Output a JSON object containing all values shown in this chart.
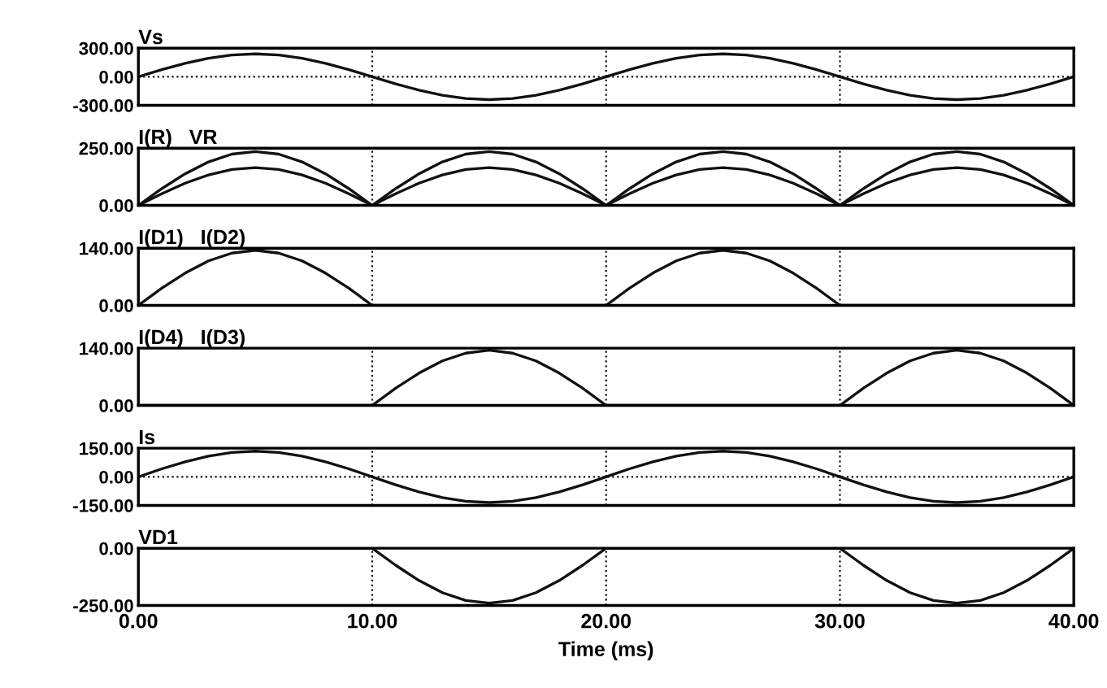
{
  "chart_data": [
    {
      "type": "line",
      "title": "Vs",
      "x": [
        0,
        1,
        2,
        3,
        4,
        5,
        6,
        7,
        8,
        9,
        10,
        11,
        12,
        13,
        14,
        15,
        16,
        17,
        18,
        19,
        20,
        21,
        22,
        23,
        24,
        25,
        26,
        27,
        28,
        29,
        30,
        31,
        32,
        33,
        34,
        35,
        36,
        37,
        38,
        39,
        40
      ],
      "xlim": [
        0,
        40
      ],
      "xticks": [
        0,
        10,
        20,
        30,
        40
      ],
      "ylim": [
        -300,
        300
      ],
      "yticks": [
        {
          "value": -300,
          "label": "-300.00"
        },
        {
          "value": 0,
          "label": "0.00"
        },
        {
          "value": 300,
          "label": "300.00"
        }
      ],
      "tick_labels": "y",
      "grid": "x",
      "legend": false,
      "series": [
        {
          "color": "#111111",
          "values": [
            0,
            74,
            141,
            194,
            228,
            240,
            228,
            194,
            141,
            74,
            0,
            -74,
            -141,
            -194,
            -228,
            -240,
            -228,
            -194,
            -141,
            -74,
            0,
            74,
            141,
            194,
            228,
            240,
            228,
            194,
            141,
            74,
            0,
            -74,
            -141,
            -194,
            -228,
            -240,
            -228,
            -194,
            -141,
            -74,
            0
          ]
        }
      ],
      "ref_lines": [
        {
          "axis": "y",
          "value": 0,
          "line_style": "dotted",
          "color": "#111111"
        }
      ]
    },
    {
      "type": "line",
      "title": "I(R)   VR",
      "x": [
        0,
        1,
        2,
        3,
        4,
        5,
        6,
        7,
        8,
        9,
        10,
        11,
        12,
        13,
        14,
        15,
        16,
        17,
        18,
        19,
        20,
        21,
        22,
        23,
        24,
        25,
        26,
        27,
        28,
        29,
        30,
        31,
        32,
        33,
        34,
        35,
        36,
        37,
        38,
        39,
        40
      ],
      "xlim": [
        0,
        40
      ],
      "xticks": [
        0,
        10,
        20,
        30,
        40
      ],
      "ylim": [
        0,
        250
      ],
      "yticks": [
        {
          "value": 0,
          "label": "0.00"
        },
        {
          "value": 250,
          "label": "250.00"
        }
      ],
      "tick_labels": "y",
      "grid": "x",
      "legend": false,
      "series": [
        {
          "color": "#111111",
          "values": [
            0,
            51,
            97,
            133,
            157,
            165,
            157,
            133,
            97,
            51,
            0,
            51,
            97,
            133,
            157,
            165,
            157,
            133,
            97,
            51,
            0,
            51,
            97,
            133,
            157,
            165,
            157,
            133,
            97,
            51,
            0,
            51,
            97,
            133,
            157,
            165,
            157,
            133,
            97,
            51,
            0
          ]
        },
        {
          "color": "#111111",
          "values": [
            0,
            73,
            138,
            190,
            224,
            235,
            224,
            190,
            138,
            73,
            0,
            73,
            138,
            190,
            224,
            235,
            224,
            190,
            138,
            73,
            0,
            73,
            138,
            190,
            224,
            235,
            224,
            190,
            138,
            73,
            0,
            73,
            138,
            190,
            224,
            235,
            224,
            190,
            138,
            73,
            0
          ]
        }
      ]
    },
    {
      "type": "line",
      "title": "I(D1)   I(D2)",
      "x": [
        0,
        1,
        2,
        3,
        4,
        5,
        6,
        7,
        8,
        9,
        10,
        11,
        12,
        13,
        14,
        15,
        16,
        17,
        18,
        19,
        20,
        21,
        22,
        23,
        24,
        25,
        26,
        27,
        28,
        29,
        30,
        31,
        32,
        33,
        34,
        35,
        36,
        37,
        38,
        39,
        40
      ],
      "xlim": [
        0,
        40
      ],
      "xticks": [
        0,
        10,
        20,
        30,
        40
      ],
      "ylim": [
        0,
        140
      ],
      "yticks": [
        {
          "value": 0,
          "label": "0.00"
        },
        {
          "value": 140,
          "label": "140.00"
        }
      ],
      "tick_labels": "y",
      "grid": "x",
      "legend": false,
      "series": [
        {
          "color": "#111111",
          "values": [
            0,
            42,
            79,
            109,
            128,
            135,
            128,
            109,
            79,
            42,
            0,
            0,
            0,
            0,
            0,
            0,
            0,
            0,
            0,
            0,
            0,
            42,
            79,
            109,
            128,
            135,
            128,
            109,
            79,
            42,
            0,
            0,
            0,
            0,
            0,
            0,
            0,
            0,
            0,
            0,
            0
          ]
        }
      ]
    },
    {
      "type": "line",
      "title": "I(D4)   I(D3)",
      "x": [
        0,
        1,
        2,
        3,
        4,
        5,
        6,
        7,
        8,
        9,
        10,
        11,
        12,
        13,
        14,
        15,
        16,
        17,
        18,
        19,
        20,
        21,
        22,
        23,
        24,
        25,
        26,
        27,
        28,
        29,
        30,
        31,
        32,
        33,
        34,
        35,
        36,
        37,
        38,
        39,
        40
      ],
      "xlim": [
        0,
        40
      ],
      "xticks": [
        0,
        10,
        20,
        30,
        40
      ],
      "ylim": [
        0,
        140
      ],
      "yticks": [
        {
          "value": 0,
          "label": "0.00"
        },
        {
          "value": 140,
          "label": "140.00"
        }
      ],
      "tick_labels": "y",
      "grid": "x",
      "legend": false,
      "series": [
        {
          "color": "#111111",
          "values": [
            0,
            0,
            0,
            0,
            0,
            0,
            0,
            0,
            0,
            0,
            0,
            42,
            79,
            109,
            128,
            135,
            128,
            109,
            79,
            42,
            0,
            0,
            0,
            0,
            0,
            0,
            0,
            0,
            0,
            0,
            0,
            42,
            79,
            109,
            128,
            135,
            128,
            109,
            79,
            42,
            0
          ]
        }
      ]
    },
    {
      "type": "line",
      "title": "Is",
      "x": [
        0,
        1,
        2,
        3,
        4,
        5,
        6,
        7,
        8,
        9,
        10,
        11,
        12,
        13,
        14,
        15,
        16,
        17,
        18,
        19,
        20,
        21,
        22,
        23,
        24,
        25,
        26,
        27,
        28,
        29,
        30,
        31,
        32,
        33,
        34,
        35,
        36,
        37,
        38,
        39,
        40
      ],
      "xlim": [
        0,
        40
      ],
      "xticks": [
        0,
        10,
        20,
        30,
        40
      ],
      "ylim": [
        -150,
        150
      ],
      "yticks": [
        {
          "value": -150,
          "label": "-150.00"
        },
        {
          "value": 0,
          "label": "0.00"
        },
        {
          "value": 150,
          "label": "150.00"
        }
      ],
      "tick_labels": "y",
      "grid": "x",
      "legend": false,
      "series": [
        {
          "color": "#111111",
          "values": [
            0,
            42,
            79,
            109,
            128,
            135,
            128,
            109,
            79,
            42,
            0,
            -42,
            -79,
            -109,
            -128,
            -135,
            -128,
            -109,
            -79,
            -42,
            0,
            42,
            79,
            109,
            128,
            135,
            128,
            109,
            79,
            42,
            0,
            -42,
            -79,
            -109,
            -128,
            -135,
            -128,
            -109,
            -79,
            -42,
            0
          ]
        }
      ],
      "ref_lines": [
        {
          "axis": "y",
          "value": 0,
          "line_style": "dotted",
          "color": "#111111"
        }
      ]
    },
    {
      "type": "line",
      "title": "VD1",
      "xlabel": "Time (ms)",
      "x": [
        0,
        1,
        2,
        3,
        4,
        5,
        6,
        7,
        8,
        9,
        10,
        11,
        12,
        13,
        14,
        15,
        16,
        17,
        18,
        19,
        20,
        21,
        22,
        23,
        24,
        25,
        26,
        27,
        28,
        29,
        30,
        31,
        32,
        33,
        34,
        35,
        36,
        37,
        38,
        39,
        40
      ],
      "xlim": [
        0,
        40
      ],
      "xticks": [
        {
          "value": 0,
          "label": "0.00"
        },
        {
          "value": 10,
          "label": "10.00"
        },
        {
          "value": 20,
          "label": "20.00"
        },
        {
          "value": 30,
          "label": "30.00"
        },
        {
          "value": 40,
          "label": "40.00"
        }
      ],
      "ylim": [
        -250,
        0
      ],
      "yticks": [
        {
          "value": -250,
          "label": "-250.00"
        },
        {
          "value": 0,
          "label": "0.00"
        }
      ],
      "grid": "x",
      "legend": false,
      "series": [
        {
          "color": "#111111",
          "values": [
            0,
            0,
            0,
            0,
            0,
            0,
            0,
            0,
            0,
            0,
            0,
            -74,
            -141,
            -194,
            -228,
            -240,
            -228,
            -194,
            -141,
            -74,
            0,
            0,
            0,
            0,
            0,
            0,
            0,
            0,
            0,
            0,
            0,
            -74,
            -141,
            -194,
            -228,
            -240,
            -228,
            -194,
            -141,
            -74,
            0
          ]
        }
      ]
    }
  ]
}
